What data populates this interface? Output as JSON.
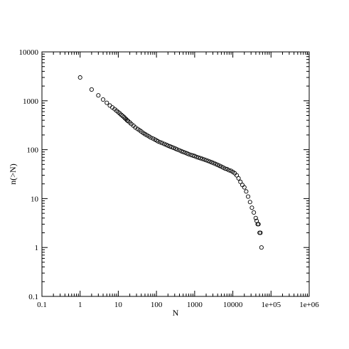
{
  "chart_data": {
    "type": "scatter",
    "title": "",
    "xlabel": "N",
    "ylabel": "n(>N)",
    "x_scale": "log",
    "y_scale": "log",
    "xlim": [
      0.1,
      1000000
    ],
    "ylim": [
      0.1,
      10000
    ],
    "x_ticks": [
      0.1,
      1,
      10,
      100,
      1000,
      10000,
      100000,
      1000000
    ],
    "x_tick_labels": [
      "0.1",
      "1",
      "10",
      "100",
      "1000",
      "10000",
      "1e+05",
      "1e+06"
    ],
    "y_ticks": [
      0.1,
      1,
      10,
      100,
      1000,
      10000
    ],
    "y_tick_labels": [
      "0.1",
      "1",
      "10",
      "100",
      "1000",
      "10000"
    ],
    "grid": false,
    "legend": "none",
    "marker": "open-circle",
    "colors": {
      "marker": "#000000",
      "axis": "#000000",
      "background": "#ffffff"
    },
    "series": [
      {
        "x": [
          1,
          2,
          3,
          4,
          5,
          6,
          7,
          8,
          9,
          10,
          11,
          12,
          13,
          14,
          15,
          16,
          17,
          18,
          20,
          22,
          25,
          28,
          32,
          36,
          40,
          45,
          50,
          56,
          63,
          70,
          80,
          90,
          100,
          110,
          125,
          140,
          160,
          180,
          200,
          225,
          250,
          280,
          315,
          350,
          400,
          450,
          500,
          560,
          630,
          700,
          800,
          900,
          1000,
          1120,
          1260,
          1410,
          1580,
          1780,
          2000,
          2240,
          2510,
          2820,
          3160,
          3550,
          3980,
          4470,
          5010,
          5620,
          6310,
          7080,
          7940,
          8910,
          10000,
          11200,
          12600,
          14100,
          15800,
          17800,
          20000,
          22400,
          25100,
          28200,
          31600,
          35500,
          39800,
          42000,
          44700,
          47000,
          50100,
          53000,
          56200
        ],
        "y": [
          3000,
          1700,
          1290,
          1060,
          910,
          800,
          730,
          675,
          625,
          585,
          550,
          515,
          490,
          465,
          440,
          420,
          400,
          385,
          360,
          335,
          310,
          285,
          265,
          250,
          235,
          220,
          208,
          198,
          188,
          178,
          170,
          162,
          155,
          148,
          142,
          137,
          131,
          126,
          121,
          117,
          113,
          109,
          105,
          101,
          97,
          93,
          90,
          87,
          84,
          81,
          78,
          76,
          74,
          71,
          69,
          67,
          65,
          63,
          61,
          59,
          57,
          55,
          53,
          51,
          49,
          47,
          45,
          43,
          41,
          40,
          38,
          37,
          35,
          33,
          30,
          26,
          22,
          19,
          17,
          14,
          11,
          8.5,
          6.5,
          5.2,
          4,
          3.5,
          3,
          3,
          2,
          2,
          1
        ]
      }
    ]
  }
}
